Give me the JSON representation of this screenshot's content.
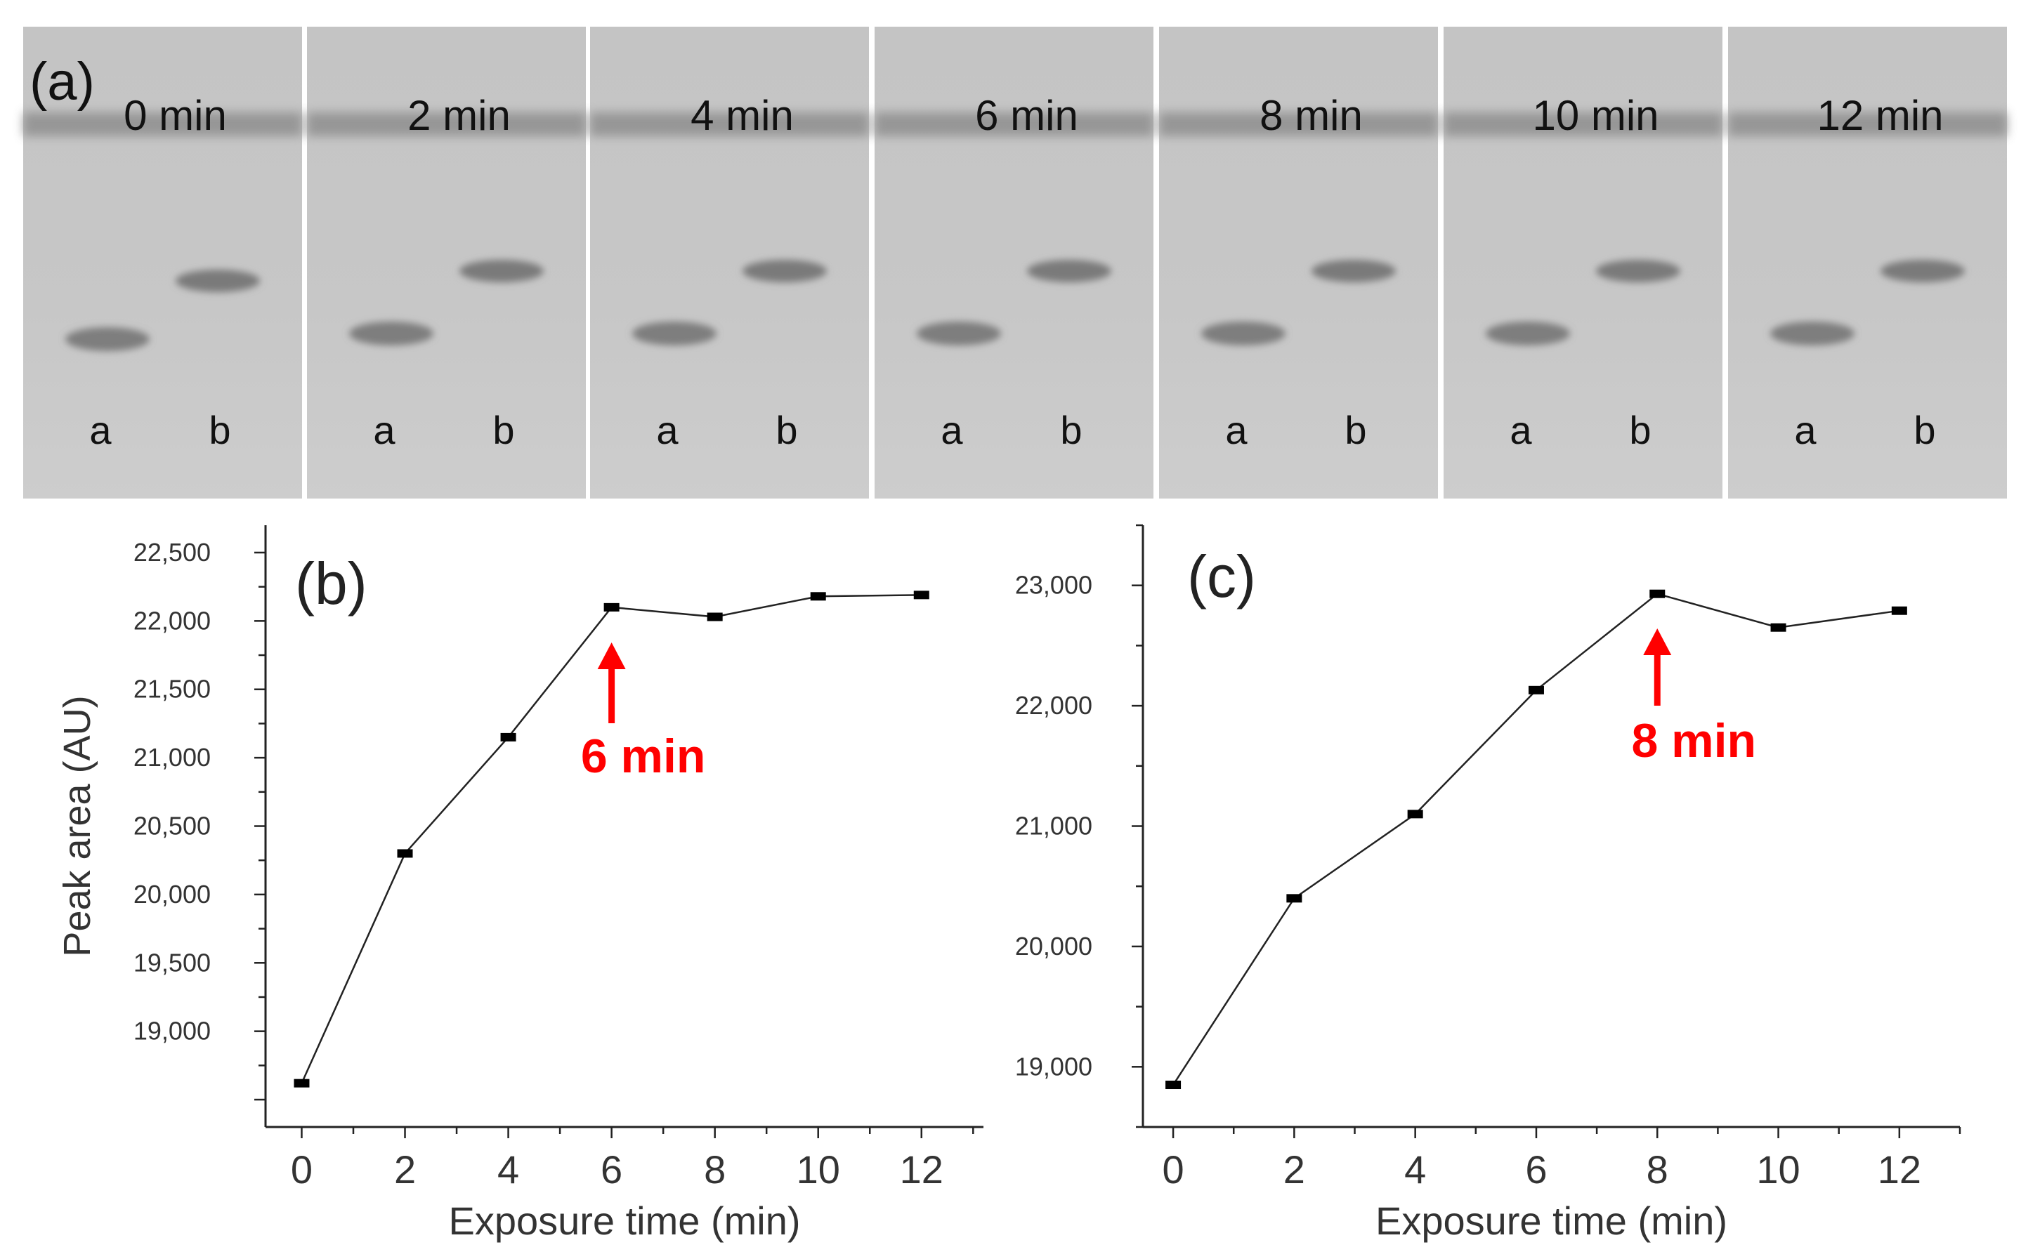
{
  "panel_a": {
    "label": "(a)",
    "lane_labels": [
      "a",
      "b"
    ],
    "strips": [
      {
        "time_label": "0 min"
      },
      {
        "time_label": "2 min"
      },
      {
        "time_label": "4 min"
      },
      {
        "time_label": "6 min"
      },
      {
        "time_label": "8 min"
      },
      {
        "time_label": "10 min"
      },
      {
        "time_label": "12 min"
      }
    ]
  },
  "chart_data": [
    {
      "type": "line",
      "panel_label": "(b)",
      "xlabel": "Exposure time (min)",
      "ylabel": "Peak area (AU)",
      "x": [
        0,
        2,
        4,
        6,
        8,
        10,
        12
      ],
      "series": [
        {
          "values": [
            18620,
            20300,
            21150,
            22100,
            22030,
            22180,
            22190
          ]
        }
      ],
      "x_ticks": [
        "0",
        "2",
        "4",
        "6",
        "8",
        "10",
        "12"
      ],
      "y_ticks": [
        "19,000",
        "19,500",
        "20,000",
        "20,500",
        "21,000",
        "21,500",
        "22,000",
        "22,500"
      ],
      "xlim": [
        -0.7,
        13.2
      ],
      "ylim": [
        18300,
        22700
      ],
      "grid": false,
      "annotation": {
        "text": "6 min",
        "x": 6,
        "color": "#ff0000"
      }
    },
    {
      "type": "line",
      "panel_label": "(c)",
      "xlabel": "Exposure time (min)",
      "ylabel": "",
      "x": [
        0,
        2,
        4,
        6,
        8,
        10,
        12
      ],
      "series": [
        {
          "values": [
            18850,
            20400,
            21100,
            22130,
            22930,
            22650,
            22790
          ]
        }
      ],
      "x_ticks": [
        "0",
        "2",
        "4",
        "6",
        "8",
        "10",
        "12"
      ],
      "y_ticks": [
        "19,000",
        "20,000",
        "21,000",
        "22,000",
        "23,000"
      ],
      "xlim": [
        -0.5,
        13.0
      ],
      "ylim": [
        18500,
        23500
      ],
      "grid": false,
      "annotation": {
        "text": "8 min",
        "x": 8,
        "color": "#ff0000"
      }
    }
  ]
}
